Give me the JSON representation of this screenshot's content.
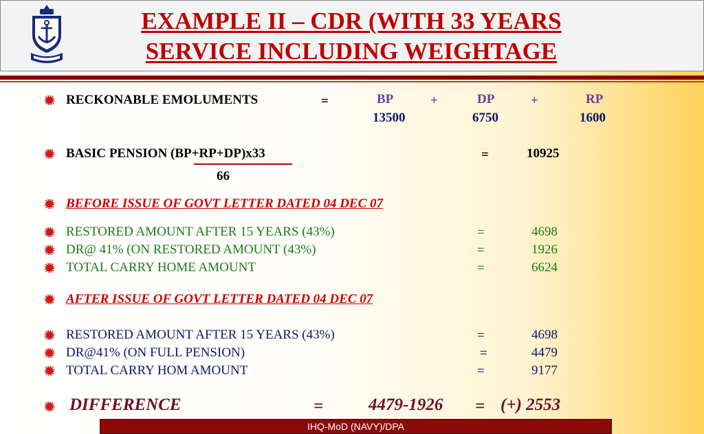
{
  "header": {
    "title_line1": "EXAMPLE II –  CDR (WITH 33 YEARS",
    "title_line2": "SERVICE INCLUDING WEIGHTAGE",
    "logo_icon": "navy-crest-icon"
  },
  "emoluments": {
    "label": "RECKONABLE EMOLUMENTS",
    "eq": "=",
    "bp_label": "BP",
    "plus1": "+",
    "dp_label": "DP",
    "plus2": "+",
    "rp_label": "RP",
    "bp_value": "13500",
    "dp_value": "6750",
    "rp_value": "1600"
  },
  "basic_pension": {
    "label": "BASIC PENSION  (BP+RP+DP)x33",
    "denominator": "66",
    "eq": "=",
    "value": "10925"
  },
  "before": {
    "heading": "BEFORE ISSUE OF GOVT LETTER DATED 04 DEC 07",
    "rows": [
      {
        "label": "RESTORED AMOUNT AFTER 15 YEARS (43%)",
        "eq": "=",
        "value": "4698"
      },
      {
        "label": "DR@ 41% (ON RESTORED AMOUNT (43%)",
        "eq": "=",
        "value": "1926"
      },
      {
        "label": "TOTAL CARRY HOME AMOUNT",
        "eq": "=",
        "value": "6624"
      }
    ]
  },
  "after": {
    "heading": "AFTER ISSUE OF GOVT LETTER DATED 04 DEC 07",
    "rows": [
      {
        "label": "RESTORED AMOUNT AFTER 15 YEARS (43%)",
        "eq": "=",
        "value": "4698"
      },
      {
        "label": "DR@41% (ON FULL PENSION)",
        "eq": "=",
        "value": "4479"
      },
      {
        "label": "TOTAL CARRY HOM AMOUNT",
        "eq": "=",
        "value": "9177"
      }
    ]
  },
  "difference": {
    "label": "DIFFERENCE",
    "eq1": "=",
    "expr": "4479-1926",
    "eq2": "=",
    "value": "(+) 2553"
  },
  "footer": {
    "text": "IHQ-MoD (NAVY)/DPA"
  },
  "colors": {
    "title": "#c00000",
    "rule": "#8b0000",
    "bullet": "#cc1a1a",
    "footer_bg": "#8b0a0a"
  }
}
